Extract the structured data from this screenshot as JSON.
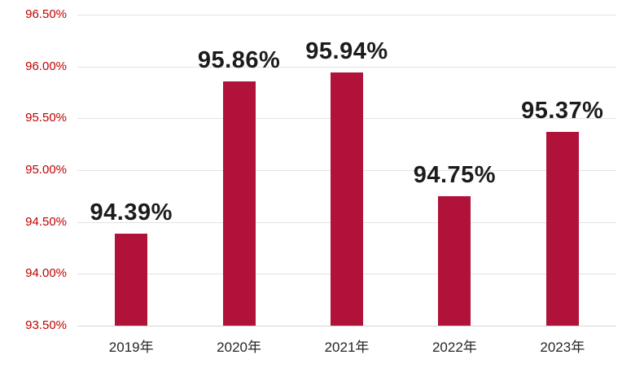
{
  "chart_data": {
    "type": "bar",
    "title": "",
    "xlabel": "",
    "ylabel": "",
    "categories": [
      "2019年",
      "2020年",
      "2021年",
      "2022年",
      "2023年"
    ],
    "values": [
      94.39,
      95.86,
      95.94,
      94.75,
      95.37
    ],
    "value_labels": [
      "94.39%",
      "95.86%",
      "95.94%",
      "94.75%",
      "95.37%"
    ],
    "y_ticks": [
      {
        "value": 96.5,
        "label": "96.50%"
      },
      {
        "value": 96.0,
        "label": "96.00%"
      },
      {
        "value": 95.5,
        "label": "95.50%"
      },
      {
        "value": 95.0,
        "label": "95.00%"
      },
      {
        "value": 94.5,
        "label": "94.50%"
      },
      {
        "value": 94.0,
        "label": "94.00%"
      },
      {
        "value": 93.5,
        "label": "93.50%"
      }
    ],
    "ylim": [
      93.5,
      96.5
    ],
    "grid": true,
    "legend": "none",
    "colors": {
      "bar": "#b0123a",
      "y_tick_label": "#c00000",
      "value_label": "#1c1c1c",
      "gridline": "#e3e3e3"
    }
  }
}
